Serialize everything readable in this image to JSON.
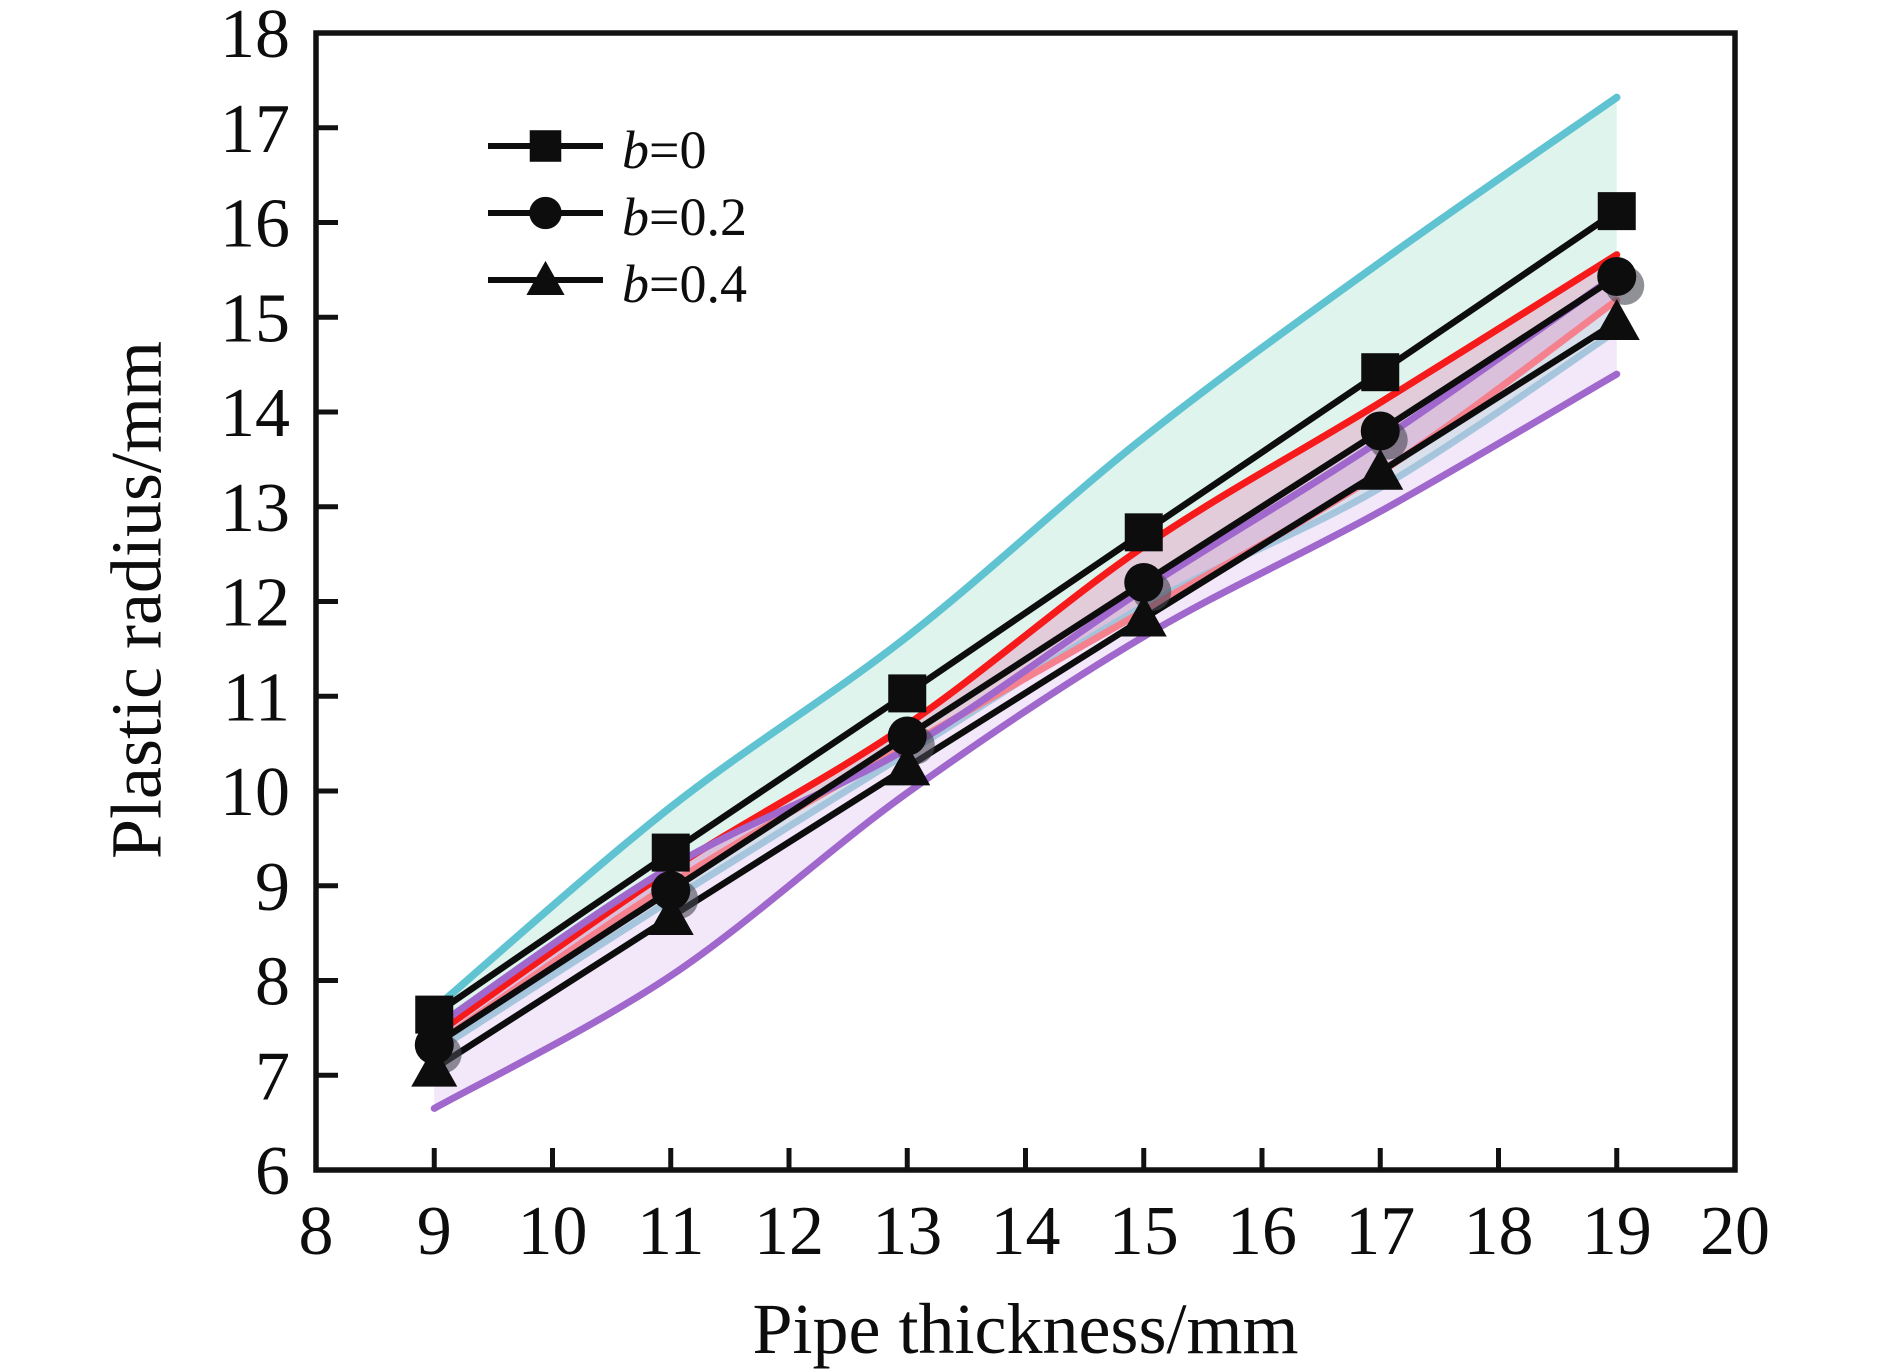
{
  "chart_data": {
    "type": "line",
    "xlabel": "Pipe thickness/mm",
    "ylabel": "Plastic radius/mm",
    "xlim": [
      8,
      20
    ],
    "ylim": [
      6,
      18
    ],
    "xticks": [
      8,
      9,
      10,
      11,
      12,
      13,
      14,
      15,
      16,
      17,
      18,
      19,
      20
    ],
    "yticks": [
      6,
      7,
      8,
      9,
      10,
      11,
      12,
      13,
      14,
      15,
      16,
      17,
      18
    ],
    "x": [
      9,
      11,
      13,
      15,
      17,
      19
    ],
    "series": [
      {
        "name": "b=0",
        "marker": "square",
        "shadow": false,
        "values": [
          7.64,
          9.35,
          11.03,
          12.73,
          14.42,
          16.12
        ]
      },
      {
        "name": "b=0.2",
        "marker": "circle",
        "shadow": true,
        "values": [
          7.32,
          8.95,
          10.58,
          12.2,
          13.8,
          15.43
        ]
      },
      {
        "name": "b=0.4",
        "marker": "triangle",
        "shadow": false,
        "values": [
          7.07,
          8.67,
          10.25,
          11.82,
          13.37,
          14.95
        ]
      }
    ],
    "bands": [
      {
        "name": "mint-band",
        "fill_key": "mint_fill",
        "upper_color_key": "cyan",
        "lower_color_key": "pale_blue",
        "upper": [
          7.7,
          9.83,
          11.63,
          13.73,
          15.58,
          17.32
        ],
        "lower": [
          7.25,
          8.85,
          10.4,
          11.95,
          13.2,
          14.86
        ]
      },
      {
        "name": "pink-band",
        "fill_key": "pink_fill",
        "upper_color_key": "red",
        "lower_color_key": "salmon",
        "upper": [
          7.42,
          9.17,
          10.7,
          12.58,
          14.1,
          15.66
        ],
        "lower": [
          7.32,
          9.02,
          10.48,
          11.9,
          13.36,
          15.18
        ]
      },
      {
        "name": "lavender-band",
        "fill_key": "lavender_fill",
        "upper_color_key": "purple",
        "lower_color_key": "purple",
        "upper": [
          7.5,
          9.2,
          10.45,
          12.13,
          13.7,
          15.45
        ],
        "lower": [
          6.65,
          8.05,
          9.98,
          11.63,
          12.95,
          14.4
        ]
      }
    ],
    "legend": [
      {
        "var": "b",
        "rest": "=0",
        "marker": "square"
      },
      {
        "var": "b",
        "rest": "=0.2",
        "marker": "circle"
      },
      {
        "var": "b",
        "rest": "=0.4",
        "marker": "triangle"
      }
    ],
    "colors": {
      "black": "#0d0d0d",
      "frame": "#111111",
      "cyan": "#5fc3d2",
      "pale_blue": "#9fc2da",
      "red": "#f61a1a",
      "salmon": "#f5818f",
      "purple": "#a067cc",
      "mint_fill": "rgba(140,214,192,0.28)",
      "pink_fill": "rgba(235,125,180,0.33)",
      "lavender_fill": "rgba(198,148,226,0.22)",
      "shadow": "rgba(70,70,82,0.60)"
    }
  }
}
